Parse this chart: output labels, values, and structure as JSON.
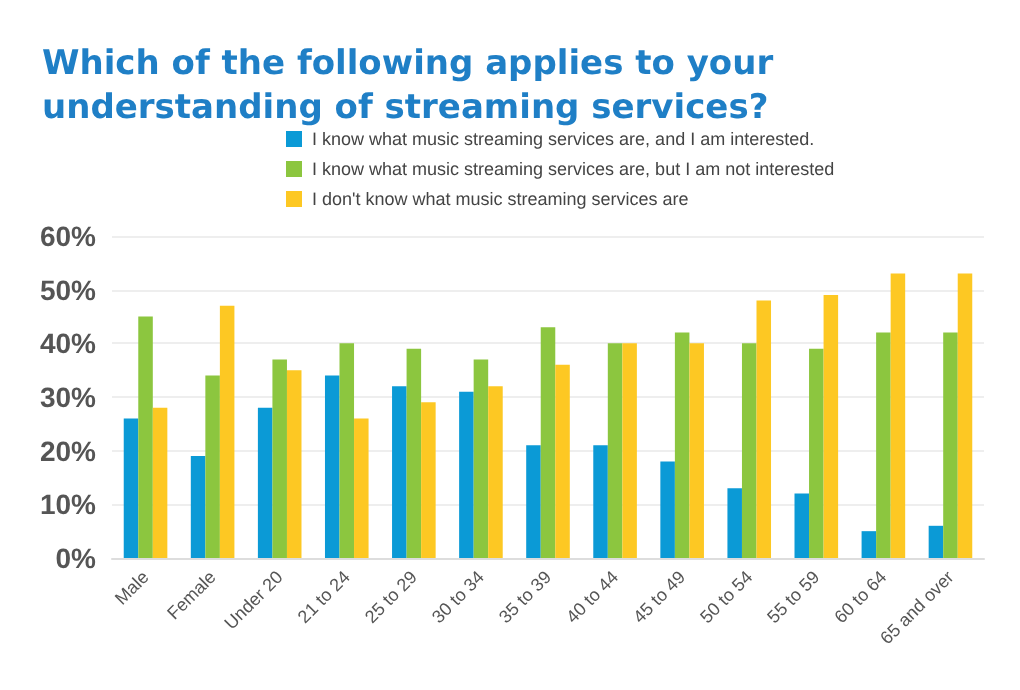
{
  "chart_data": {
    "type": "bar",
    "title": "Which of the following applies to your understanding of streaming services?",
    "categories": [
      "Male",
      "Female",
      "Under 20",
      "21 to 24",
      "25 to 29",
      "30 to 34",
      "35 to 39",
      "40 to 44",
      "45 to 49",
      "50 to 54",
      "55 to 59",
      "60 to 64",
      "65 and over"
    ],
    "series": [
      {
        "name": "I know what music streaming services are, and I am interested.",
        "color": "#0b9ad6",
        "values": [
          26,
          19,
          28,
          34,
          32,
          31,
          21,
          21,
          18,
          13,
          12,
          5,
          6
        ]
      },
      {
        "name": "I know what music streaming services are, but I am not interested",
        "color": "#8cc63f",
        "values": [
          45,
          34,
          37,
          40,
          39,
          37,
          43,
          40,
          42,
          40,
          39,
          42,
          42
        ]
      },
      {
        "name": "I don't know what music streaming services are",
        "color": "#fdc823",
        "values": [
          28,
          47,
          35,
          26,
          29,
          32,
          36,
          40,
          40,
          48,
          49,
          53,
          53
        ]
      }
    ],
    "ylim": [
      0,
      60
    ],
    "yticks": [
      {
        "value": 0,
        "label": "0%"
      },
      {
        "value": 10,
        "label": "10%"
      },
      {
        "value": 20,
        "label": "20%"
      },
      {
        "value": 30,
        "label": "30%"
      },
      {
        "value": 40,
        "label": "40%"
      },
      {
        "value": 50,
        "label": "50%"
      },
      {
        "value": 60,
        "label": "60%"
      }
    ],
    "grid": "y",
    "legend": "top"
  }
}
